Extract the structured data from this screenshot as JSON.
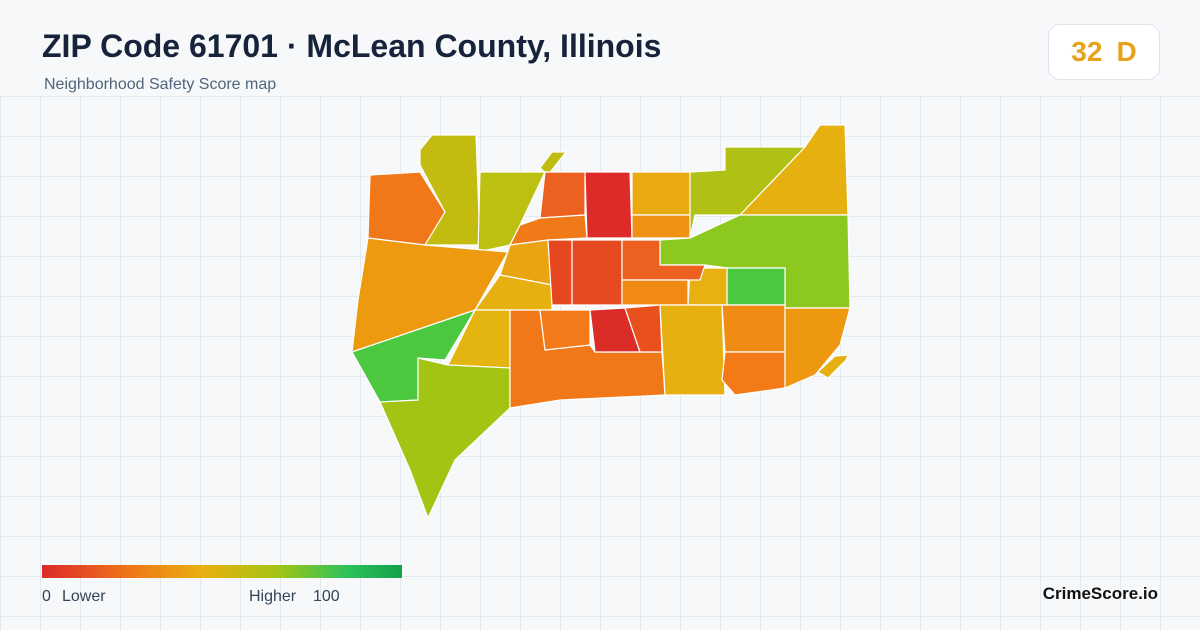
{
  "header": {
    "title": "ZIP Code 61701 · McLean County, Illinois",
    "subtitle": "Neighborhood Safety Score map"
  },
  "score": {
    "value": 32,
    "grade": "D"
  },
  "legend": {
    "min": 0,
    "min_label": "Lower",
    "max_label": "Higher",
    "max": 100
  },
  "footer": {
    "brand": "CrimeScore.io"
  }
}
